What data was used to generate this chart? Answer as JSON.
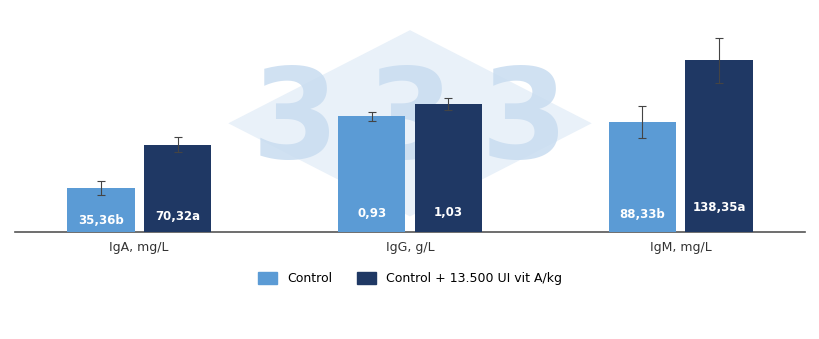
{
  "groups": [
    "IgA, mg/L",
    "IgG, g/L",
    "IgM, mg/L"
  ],
  "control_labels": [
    "35,36b",
    "0,93",
    "88,33b"
  ],
  "treatment_labels": [
    "70,32a",
    "1,03",
    "138,35a"
  ],
  "visual_control": [
    35.36,
    93.0,
    88.33
  ],
  "visual_treatment": [
    70.32,
    103.0,
    138.35
  ],
  "visual_ctrl_err": [
    5.5,
    4.0,
    13.0
  ],
  "visual_treat_err": [
    6.0,
    5.0,
    18.0
  ],
  "control_color": "#5B9BD5",
  "treatment_color": "#1F3864",
  "bar_width": 0.3,
  "x_positions": [
    0.0,
    1.2,
    2.4
  ],
  "legend_control": "Control",
  "legend_treatment": "Control + 13.500 UI vit A/kg",
  "figsize": [
    8.2,
    3.39
  ],
  "dpi": 100,
  "background_color": "#FFFFFF",
  "label_fontsize": 8.5,
  "tick_fontsize": 9,
  "legend_fontsize": 9,
  "watermark_color": "#C8DCF0",
  "watermark_alpha": 0.5,
  "ylim_max": 175
}
